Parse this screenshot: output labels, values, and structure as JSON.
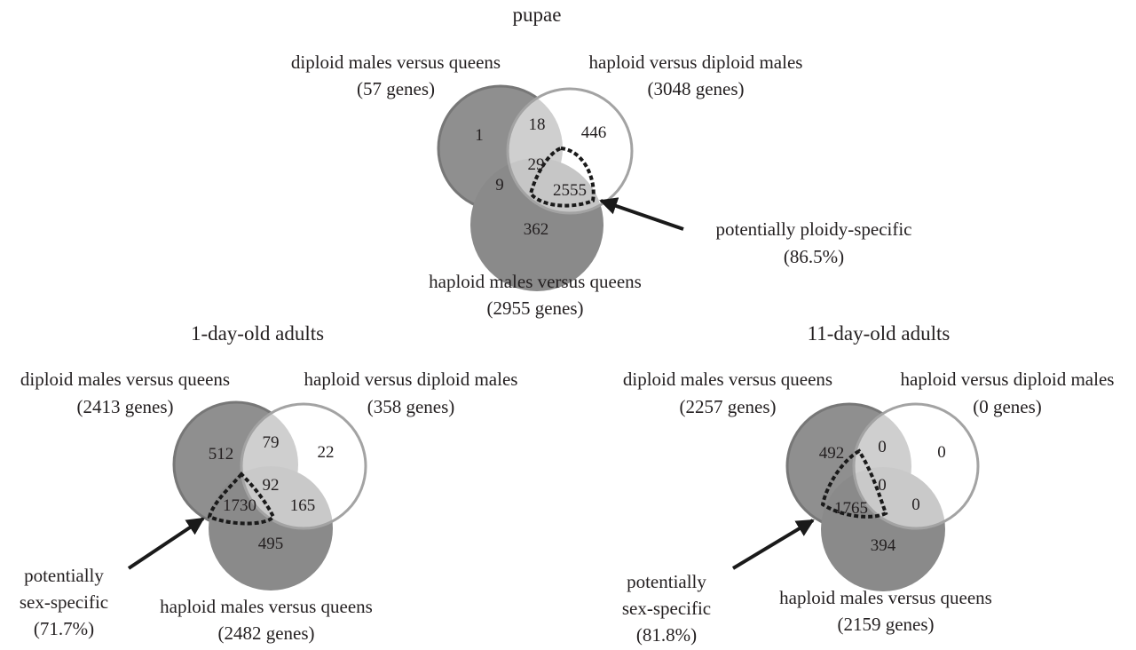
{
  "panels": {
    "pupae": {
      "title": "pupae",
      "set_a": {
        "label": "diploid males versus queens",
        "count": "(57 genes)"
      },
      "set_b": {
        "label": "haploid versus diploid males",
        "count": "(3048 genes)"
      },
      "set_c": {
        "label": "haploid males versus queens",
        "count": "(2955 genes)"
      },
      "regions": {
        "a_only": "1",
        "ab": "18",
        "b_only": "446",
        "abc": "29",
        "ac": "9",
        "bc": "2555",
        "c_only": "362"
      },
      "annotation": {
        "line1": "potentially ploidy-specific",
        "line2": "(86.5%)"
      }
    },
    "day1": {
      "title": "1-day-old adults",
      "set_a": {
        "label": "diploid males versus queens",
        "count": "(2413 genes)"
      },
      "set_b": {
        "label": "haploid versus diploid males",
        "count": "(358 genes)"
      },
      "set_c": {
        "label": "haploid males versus queens",
        "count": "(2482 genes)"
      },
      "regions": {
        "a_only": "512",
        "ab": "79",
        "b_only": "22",
        "abc": "92",
        "ac": "1730",
        "bc": "165",
        "c_only": "495"
      },
      "annotation": {
        "line1": "potentially",
        "line2": "sex-specific",
        "line3": "(71.7%)"
      }
    },
    "day11": {
      "title": "11-day-old adults",
      "set_a": {
        "label": "diploid males versus queens",
        "count": "(2257 genes)"
      },
      "set_b": {
        "label": "haploid versus diploid males",
        "count": "(0 genes)"
      },
      "set_c": {
        "label": "haploid males versus queens",
        "count": "(2159 genes)"
      },
      "regions": {
        "a_only": "492",
        "ab": "0",
        "b_only": "0",
        "abc": "0",
        "ac": "1765",
        "bc": "0",
        "c_only": "394"
      },
      "annotation": {
        "line1": "potentially",
        "line2": "sex-specific",
        "line3": "(81.8%)"
      }
    }
  },
  "colors": {
    "text": "#231f20",
    "set_a_fill": "#8f8f8f",
    "set_a_stroke": "#777777",
    "set_b_stroke": "#a3a3a3",
    "set_c_fill": "#8a8a8a",
    "ab_overlap": "#cfcfcf",
    "bc_overlap": "#cbcbcb",
    "arrow": "#1a1a1a"
  }
}
